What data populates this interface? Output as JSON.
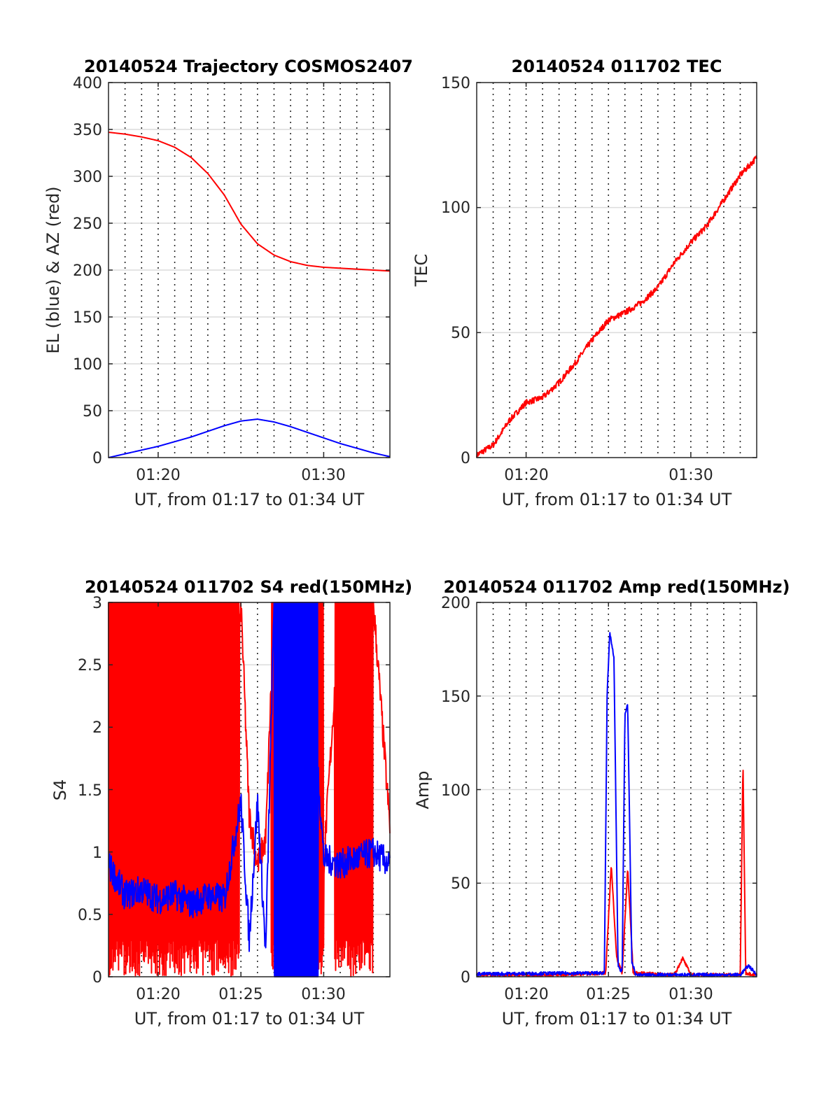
{
  "colors": {
    "red": "#ff0000",
    "blue": "#0000ff",
    "axis": "#262626",
    "grid": "#dcdcdc"
  },
  "chart_data": [
    {
      "id": "traj",
      "type": "line",
      "title": "20140524 Trajectory COSMOS2407",
      "xlabel": "UT, from 01:17 to 01:34 UT",
      "ylabel": "EL (blue) & AZ (red)",
      "xlim": [
        "01:17",
        "01:34"
      ],
      "ylim": [
        0,
        400
      ],
      "yticks": [
        0,
        50,
        100,
        150,
        200,
        250,
        300,
        350,
        400
      ],
      "xtick_labels": [
        "01:20",
        "01:30"
      ],
      "grid": true,
      "series": [
        {
          "color": "red",
          "x": [
            "01:17",
            "01:18",
            "01:19",
            "01:20",
            "01:21",
            "01:22",
            "01:23",
            "01:24",
            "01:25",
            "01:26",
            "01:27",
            "01:28",
            "01:29",
            "01:30",
            "01:31",
            "01:32",
            "01:33",
            "01:34"
          ],
          "values": [
            347,
            345,
            342,
            338,
            331,
            320,
            303,
            280,
            249,
            228,
            216,
            209,
            205,
            203,
            202,
            201,
            200,
            199
          ]
        },
        {
          "color": "blue",
          "x": [
            "01:17",
            "01:18",
            "01:19",
            "01:20",
            "01:21",
            "01:22",
            "01:23",
            "01:24",
            "01:25",
            "01:26",
            "01:27",
            "01:28",
            "01:29",
            "01:30",
            "01:31",
            "01:32",
            "01:33",
            "01:34"
          ],
          "values": [
            0,
            4,
            8,
            12,
            17,
            22,
            28,
            34,
            39,
            41,
            38,
            33,
            27,
            21,
            15,
            10,
            5,
            1
          ]
        }
      ]
    },
    {
      "id": "tec",
      "type": "line",
      "title": "20140524 011702 TEC",
      "xlabel": "UT, from 01:17 to 01:34 UT",
      "ylabel": "TEC",
      "xlim": [
        "01:17",
        "01:34"
      ],
      "ylim": [
        0,
        150
      ],
      "yticks": [
        0,
        50,
        100,
        150
      ],
      "xtick_labels": [
        "01:20",
        "01:30"
      ],
      "grid": true,
      "series": [
        {
          "color": "red",
          "x": [
            "01:17",
            "01:18",
            "01:19",
            "01:20",
            "01:21",
            "01:22",
            "01:23",
            "01:24",
            "01:25",
            "01:26",
            "01:27",
            "01:28",
            "01:29",
            "01:30",
            "01:31",
            "01:32",
            "01:33",
            "01:34"
          ],
          "values": [
            1,
            5,
            15,
            22,
            24,
            30,
            38,
            47,
            55,
            58,
            62,
            68,
            78,
            86,
            93,
            103,
            113,
            120
          ]
        }
      ]
    },
    {
      "id": "s4",
      "type": "line",
      "title": "20140524 011702 S4 red(150MHz)",
      "xlabel": "UT, from 01:17 to 01:34 UT",
      "ylabel": "S4",
      "xlim": [
        "01:17",
        "01:34"
      ],
      "ylim": [
        0,
        3
      ],
      "yticks": [
        0,
        0.5,
        1,
        1.5,
        2,
        2.5,
        3
      ],
      "xtick_labels": [
        "01:20",
        "01:25",
        "01:30"
      ],
      "grid": true,
      "series": [
        {
          "color": "red",
          "x": [
            "01:17",
            "01:18",
            "01:19",
            "01:20",
            "01:21",
            "01:22",
            "01:23",
            "01:24",
            "01:25",
            "01:25:30",
            "01:26",
            "01:26:30",
            "01:27",
            "01:28",
            "01:29",
            "01:30",
            "01:31",
            "01:32",
            "01:33",
            "01:34"
          ],
          "values": [
            3,
            0,
            3,
            0,
            3,
            0,
            3,
            0,
            3,
            1.3,
            0.9,
            1.1,
            3,
            0,
            3,
            0.9,
            3,
            0,
            3,
            1.2
          ]
        },
        {
          "color": "blue",
          "x": [
            "01:17",
            "01:18",
            "01:19",
            "01:20",
            "01:21",
            "01:22",
            "01:23",
            "01:24",
            "01:25",
            "01:25:30",
            "01:26",
            "01:26:30",
            "01:27",
            "01:28",
            "01:29",
            "01:30",
            "01:31",
            "01:32",
            "01:33",
            "01:34"
          ],
          "values": [
            0.9,
            0.65,
            0.7,
            0.62,
            0.66,
            0.58,
            0.65,
            0.62,
            1.4,
            0.3,
            1.4,
            0.2,
            3,
            0,
            3,
            0.95,
            0.9,
            0.95,
            1.0,
            0.9
          ]
        }
      ]
    },
    {
      "id": "amp",
      "type": "line",
      "title": "20140524 011702 Amp red(150MHz)",
      "xlabel": "UT, from 01:17 to 01:34 UT",
      "ylabel": "Amp",
      "xlim": [
        "01:17",
        "01:34"
      ],
      "ylim": [
        0,
        200
      ],
      "yticks": [
        0,
        50,
        100,
        150,
        200
      ],
      "xtick_labels": [
        "01:20",
        "01:25",
        "01:30"
      ],
      "grid": true,
      "series": [
        {
          "color": "red",
          "x": [
            "01:17",
            "01:22",
            "01:24:50",
            "01:25:10",
            "01:25:30",
            "01:25:50",
            "01:26:10",
            "01:26:30",
            "01:29",
            "01:29:30",
            "01:30",
            "01:33",
            "01:33:10",
            "01:33:20",
            "01:34"
          ],
          "values": [
            1,
            1,
            2,
            60,
            10,
            2,
            58,
            2,
            1,
            10,
            1,
            1,
            115,
            2,
            1
          ]
        },
        {
          "color": "blue",
          "x": [
            "01:17",
            "01:24:45",
            "01:24:55",
            "01:25:05",
            "01:25:20",
            "01:25:35",
            "01:25:50",
            "01:26",
            "01:26:10",
            "01:26:25",
            "01:26:40",
            "01:33",
            "01:33:30",
            "01:34"
          ],
          "values": [
            1.5,
            2,
            150,
            184,
            170,
            5,
            3,
            140,
            146,
            8,
            1,
            1,
            6,
            1
          ]
        }
      ]
    }
  ],
  "panels": [
    {
      "title": "20140524 Trajectory COSMOS2407",
      "ylabel": "EL (blue) & AZ (red)",
      "xlabel": "UT, from 01:17 to 01:34 UT",
      "ytick_labels": [
        "0",
        "50",
        "100",
        "150",
        "200",
        "250",
        "300",
        "350",
        "400"
      ],
      "xtick_labels": [
        "01:20",
        "01:30"
      ]
    },
    {
      "title": "20140524 011702 TEC",
      "ylabel": "TEC",
      "xlabel": "UT, from 01:17 to 01:34 UT",
      "ytick_labels": [
        "0",
        "50",
        "100",
        "150"
      ],
      "xtick_labels": [
        "01:20",
        "01:30"
      ]
    },
    {
      "title": "20140524 011702 S4 red(150MHz)",
      "ylabel": "S4",
      "xlabel": "UT, from 01:17 to 01:34 UT",
      "ytick_labels": [
        "0",
        "0.5",
        "1",
        "1.5",
        "2",
        "2.5",
        "3"
      ],
      "xtick_labels": [
        "01:20",
        "01:25",
        "01:30"
      ]
    },
    {
      "title": "20140524 011702 Amp red(150MHz)",
      "ylabel": "Amp",
      "xlabel": "UT, from 01:17 to 01:34 UT",
      "ytick_labels": [
        "0",
        "50",
        "100",
        "150",
        "200"
      ],
      "xtick_labels": [
        "01:20",
        "01:25",
        "01:30"
      ]
    }
  ]
}
